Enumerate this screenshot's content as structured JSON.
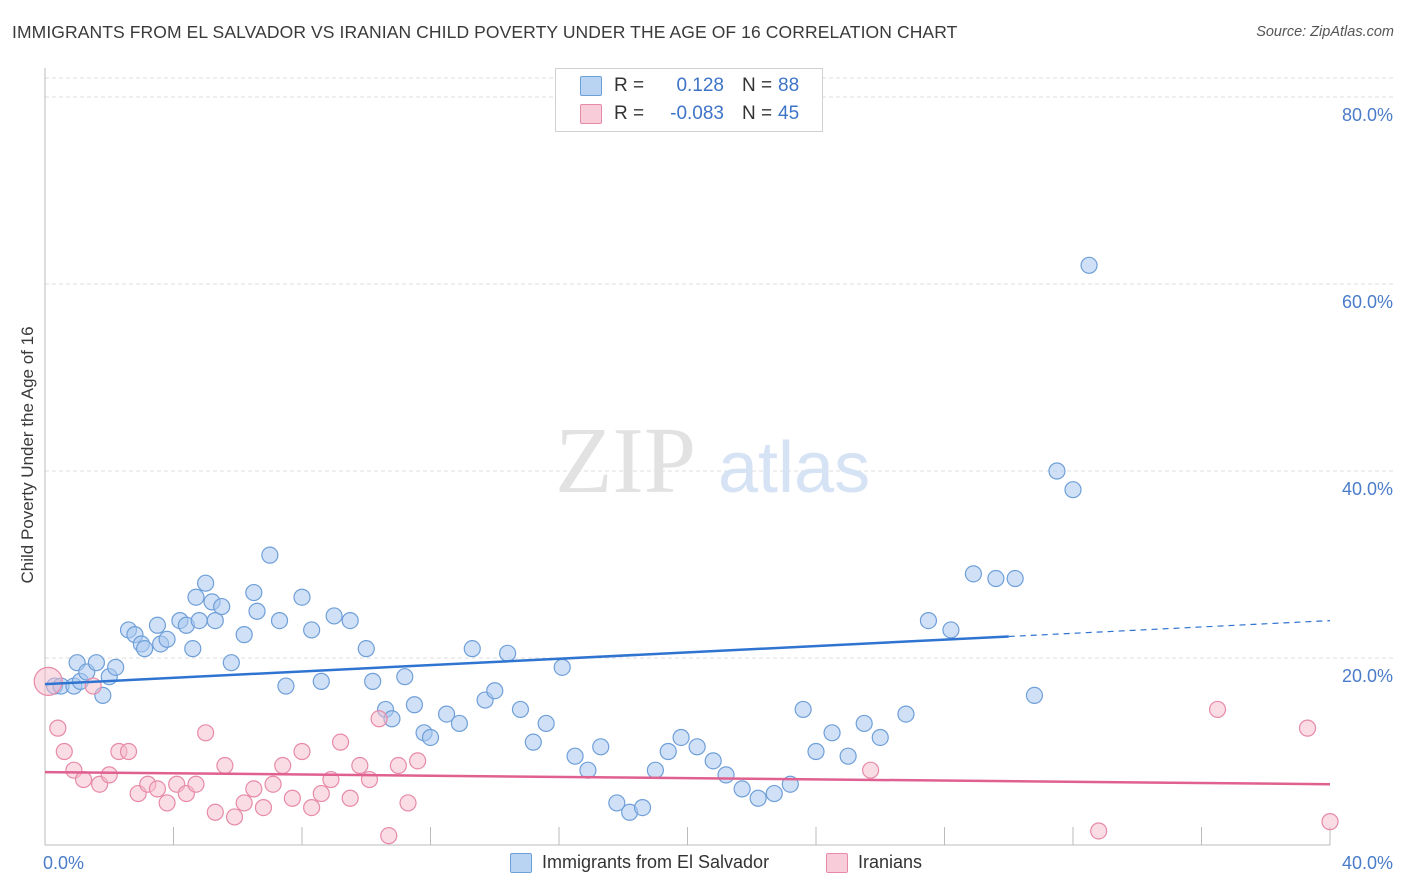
{
  "header": {
    "title": "IMMIGRANTS FROM EL SALVADOR VS IRANIAN CHILD POVERTY UNDER THE AGE OF 16 CORRELATION CHART",
    "source": "Source: ZipAtlas.com"
  },
  "watermark": {
    "zip": "ZIP",
    "atlas": "atlas"
  },
  "legend": {
    "rows": [
      {
        "r_label": "R =",
        "r_value": "0.128",
        "n_label": "N =",
        "n_value": "88"
      },
      {
        "r_label": "R =",
        "r_value": "-0.083",
        "n_label": "N =",
        "n_value": "45"
      }
    ]
  },
  "bottom_legend": {
    "series1": "Immigrants from El Salvador",
    "series2": "Iranians"
  },
  "colors": {
    "blue_fill": "#a9c8f0",
    "blue_stroke": "#6f9fd8",
    "blue_line": "#2f74d0",
    "pink_fill": "#f6b9cc",
    "pink_stroke": "#e78aa8",
    "pink_line": "#e0608f",
    "axis_text": "#4a7cc9",
    "grid": "#dddddd"
  },
  "chart_data": {
    "type": "scatter",
    "title": "IMMIGRANTS FROM EL SALVADOR VS IRANIAN CHILD POVERTY UNDER THE AGE OF 16 CORRELATION CHART",
    "xlabel": "",
    "ylabel": "Child Poverty Under the Age of 16",
    "xlim": [
      0,
      40
    ],
    "ylim": [
      0,
      80
    ],
    "x_tick_labels": [
      "0.0%",
      "40.0%"
    ],
    "y_tick_values": [
      20,
      40,
      60,
      80
    ],
    "y_tick_labels": [
      "20.0%",
      "40.0%",
      "60.0%",
      "80.0%"
    ],
    "grid": true,
    "series": [
      {
        "name": "Immigrants from El Salvador",
        "color": "#a9c8f0",
        "trend": {
          "x": [
            0,
            30
          ],
          "y": [
            17.2,
            22.3
          ],
          "dashed_to": [
            40,
            24.0
          ]
        },
        "points": [
          [
            0.3,
            17.0
          ],
          [
            0.5,
            17.0
          ],
          [
            0.9,
            17.0
          ],
          [
            1.0,
            19.5
          ],
          [
            1.1,
            17.5
          ],
          [
            1.3,
            18.5
          ],
          [
            1.6,
            19.5
          ],
          [
            1.8,
            16.0
          ],
          [
            2.0,
            18.0
          ],
          [
            2.2,
            19.0
          ],
          [
            2.6,
            23.0
          ],
          [
            2.8,
            22.5
          ],
          [
            3.0,
            21.5
          ],
          [
            3.1,
            21.0
          ],
          [
            3.5,
            23.5
          ],
          [
            3.6,
            21.5
          ],
          [
            3.8,
            22.0
          ],
          [
            4.2,
            24.0
          ],
          [
            4.4,
            23.5
          ],
          [
            4.6,
            21.0
          ],
          [
            4.7,
            26.5
          ],
          [
            4.8,
            24.0
          ],
          [
            5.0,
            28.0
          ],
          [
            5.2,
            26.0
          ],
          [
            5.3,
            24.0
          ],
          [
            5.5,
            25.5
          ],
          [
            5.8,
            19.5
          ],
          [
            6.2,
            22.5
          ],
          [
            6.5,
            27.0
          ],
          [
            6.6,
            25.0
          ],
          [
            7.0,
            31.0
          ],
          [
            7.3,
            24.0
          ],
          [
            7.5,
            17.0
          ],
          [
            8.0,
            26.5
          ],
          [
            8.3,
            23.0
          ],
          [
            8.6,
            17.5
          ],
          [
            9.0,
            24.5
          ],
          [
            9.5,
            24.0
          ],
          [
            10.0,
            21.0
          ],
          [
            10.2,
            17.5
          ],
          [
            10.6,
            14.5
          ],
          [
            10.8,
            13.5
          ],
          [
            11.2,
            18.0
          ],
          [
            11.5,
            15.0
          ],
          [
            11.8,
            12.0
          ],
          [
            12.0,
            11.5
          ],
          [
            12.5,
            14.0
          ],
          [
            12.9,
            13.0
          ],
          [
            13.3,
            21.0
          ],
          [
            13.7,
            15.5
          ],
          [
            14.0,
            16.5
          ],
          [
            14.4,
            20.5
          ],
          [
            14.8,
            14.5
          ],
          [
            15.2,
            11.0
          ],
          [
            15.6,
            13.0
          ],
          [
            16.1,
            19.0
          ],
          [
            16.5,
            9.5
          ],
          [
            16.9,
            8.0
          ],
          [
            17.3,
            10.5
          ],
          [
            17.8,
            4.5
          ],
          [
            18.2,
            3.5
          ],
          [
            18.6,
            4.0
          ],
          [
            19.0,
            8.0
          ],
          [
            19.4,
            10.0
          ],
          [
            19.8,
            11.5
          ],
          [
            20.3,
            10.5
          ],
          [
            20.8,
            9.0
          ],
          [
            21.2,
            7.5
          ],
          [
            21.7,
            6.0
          ],
          [
            22.2,
            5.0
          ],
          [
            22.7,
            5.5
          ],
          [
            23.2,
            6.5
          ],
          [
            23.6,
            14.5
          ],
          [
            24.0,
            10.0
          ],
          [
            24.5,
            12.0
          ],
          [
            25.0,
            9.5
          ],
          [
            25.5,
            13.0
          ],
          [
            26.0,
            11.5
          ],
          [
            26.8,
            14.0
          ],
          [
            27.5,
            24.0
          ],
          [
            28.2,
            23.0
          ],
          [
            28.9,
            29.0
          ],
          [
            29.6,
            28.5
          ],
          [
            30.2,
            28.5
          ],
          [
            30.8,
            16.0
          ],
          [
            31.5,
            40.0
          ],
          [
            32.0,
            38.0
          ],
          [
            32.5,
            62.0
          ]
        ]
      },
      {
        "name": "Iranians",
        "color": "#f6b9cc",
        "trend": {
          "x": [
            0,
            40
          ],
          "y": [
            7.8,
            6.5
          ]
        },
        "points": [
          [
            0.1,
            17.5
          ],
          [
            0.4,
            12.5
          ],
          [
            0.6,
            10.0
          ],
          [
            0.9,
            8.0
          ],
          [
            1.2,
            7.0
          ],
          [
            1.5,
            17.0
          ],
          [
            1.7,
            6.5
          ],
          [
            2.0,
            7.5
          ],
          [
            2.3,
            10.0
          ],
          [
            2.6,
            10.0
          ],
          [
            2.9,
            5.5
          ],
          [
            3.2,
            6.5
          ],
          [
            3.5,
            6.0
          ],
          [
            3.8,
            4.5
          ],
          [
            4.1,
            6.5
          ],
          [
            4.4,
            5.5
          ],
          [
            4.7,
            6.5
          ],
          [
            5.0,
            12.0
          ],
          [
            5.3,
            3.5
          ],
          [
            5.6,
            8.5
          ],
          [
            5.9,
            3.0
          ],
          [
            6.2,
            4.5
          ],
          [
            6.5,
            6.0
          ],
          [
            6.8,
            4.0
          ],
          [
            7.1,
            6.5
          ],
          [
            7.4,
            8.5
          ],
          [
            7.7,
            5.0
          ],
          [
            8.0,
            10.0
          ],
          [
            8.3,
            4.0
          ],
          [
            8.6,
            5.5
          ],
          [
            8.9,
            7.0
          ],
          [
            9.2,
            11.0
          ],
          [
            9.5,
            5.0
          ],
          [
            9.8,
            8.5
          ],
          [
            10.1,
            7.0
          ],
          [
            10.4,
            13.5
          ],
          [
            10.7,
            1.0
          ],
          [
            11.0,
            8.5
          ],
          [
            11.3,
            4.5
          ],
          [
            11.6,
            9.0
          ],
          [
            25.7,
            8.0
          ],
          [
            32.8,
            1.5
          ],
          [
            36.5,
            14.5
          ],
          [
            39.3,
            12.5
          ],
          [
            40.0,
            2.5
          ]
        ]
      }
    ]
  }
}
